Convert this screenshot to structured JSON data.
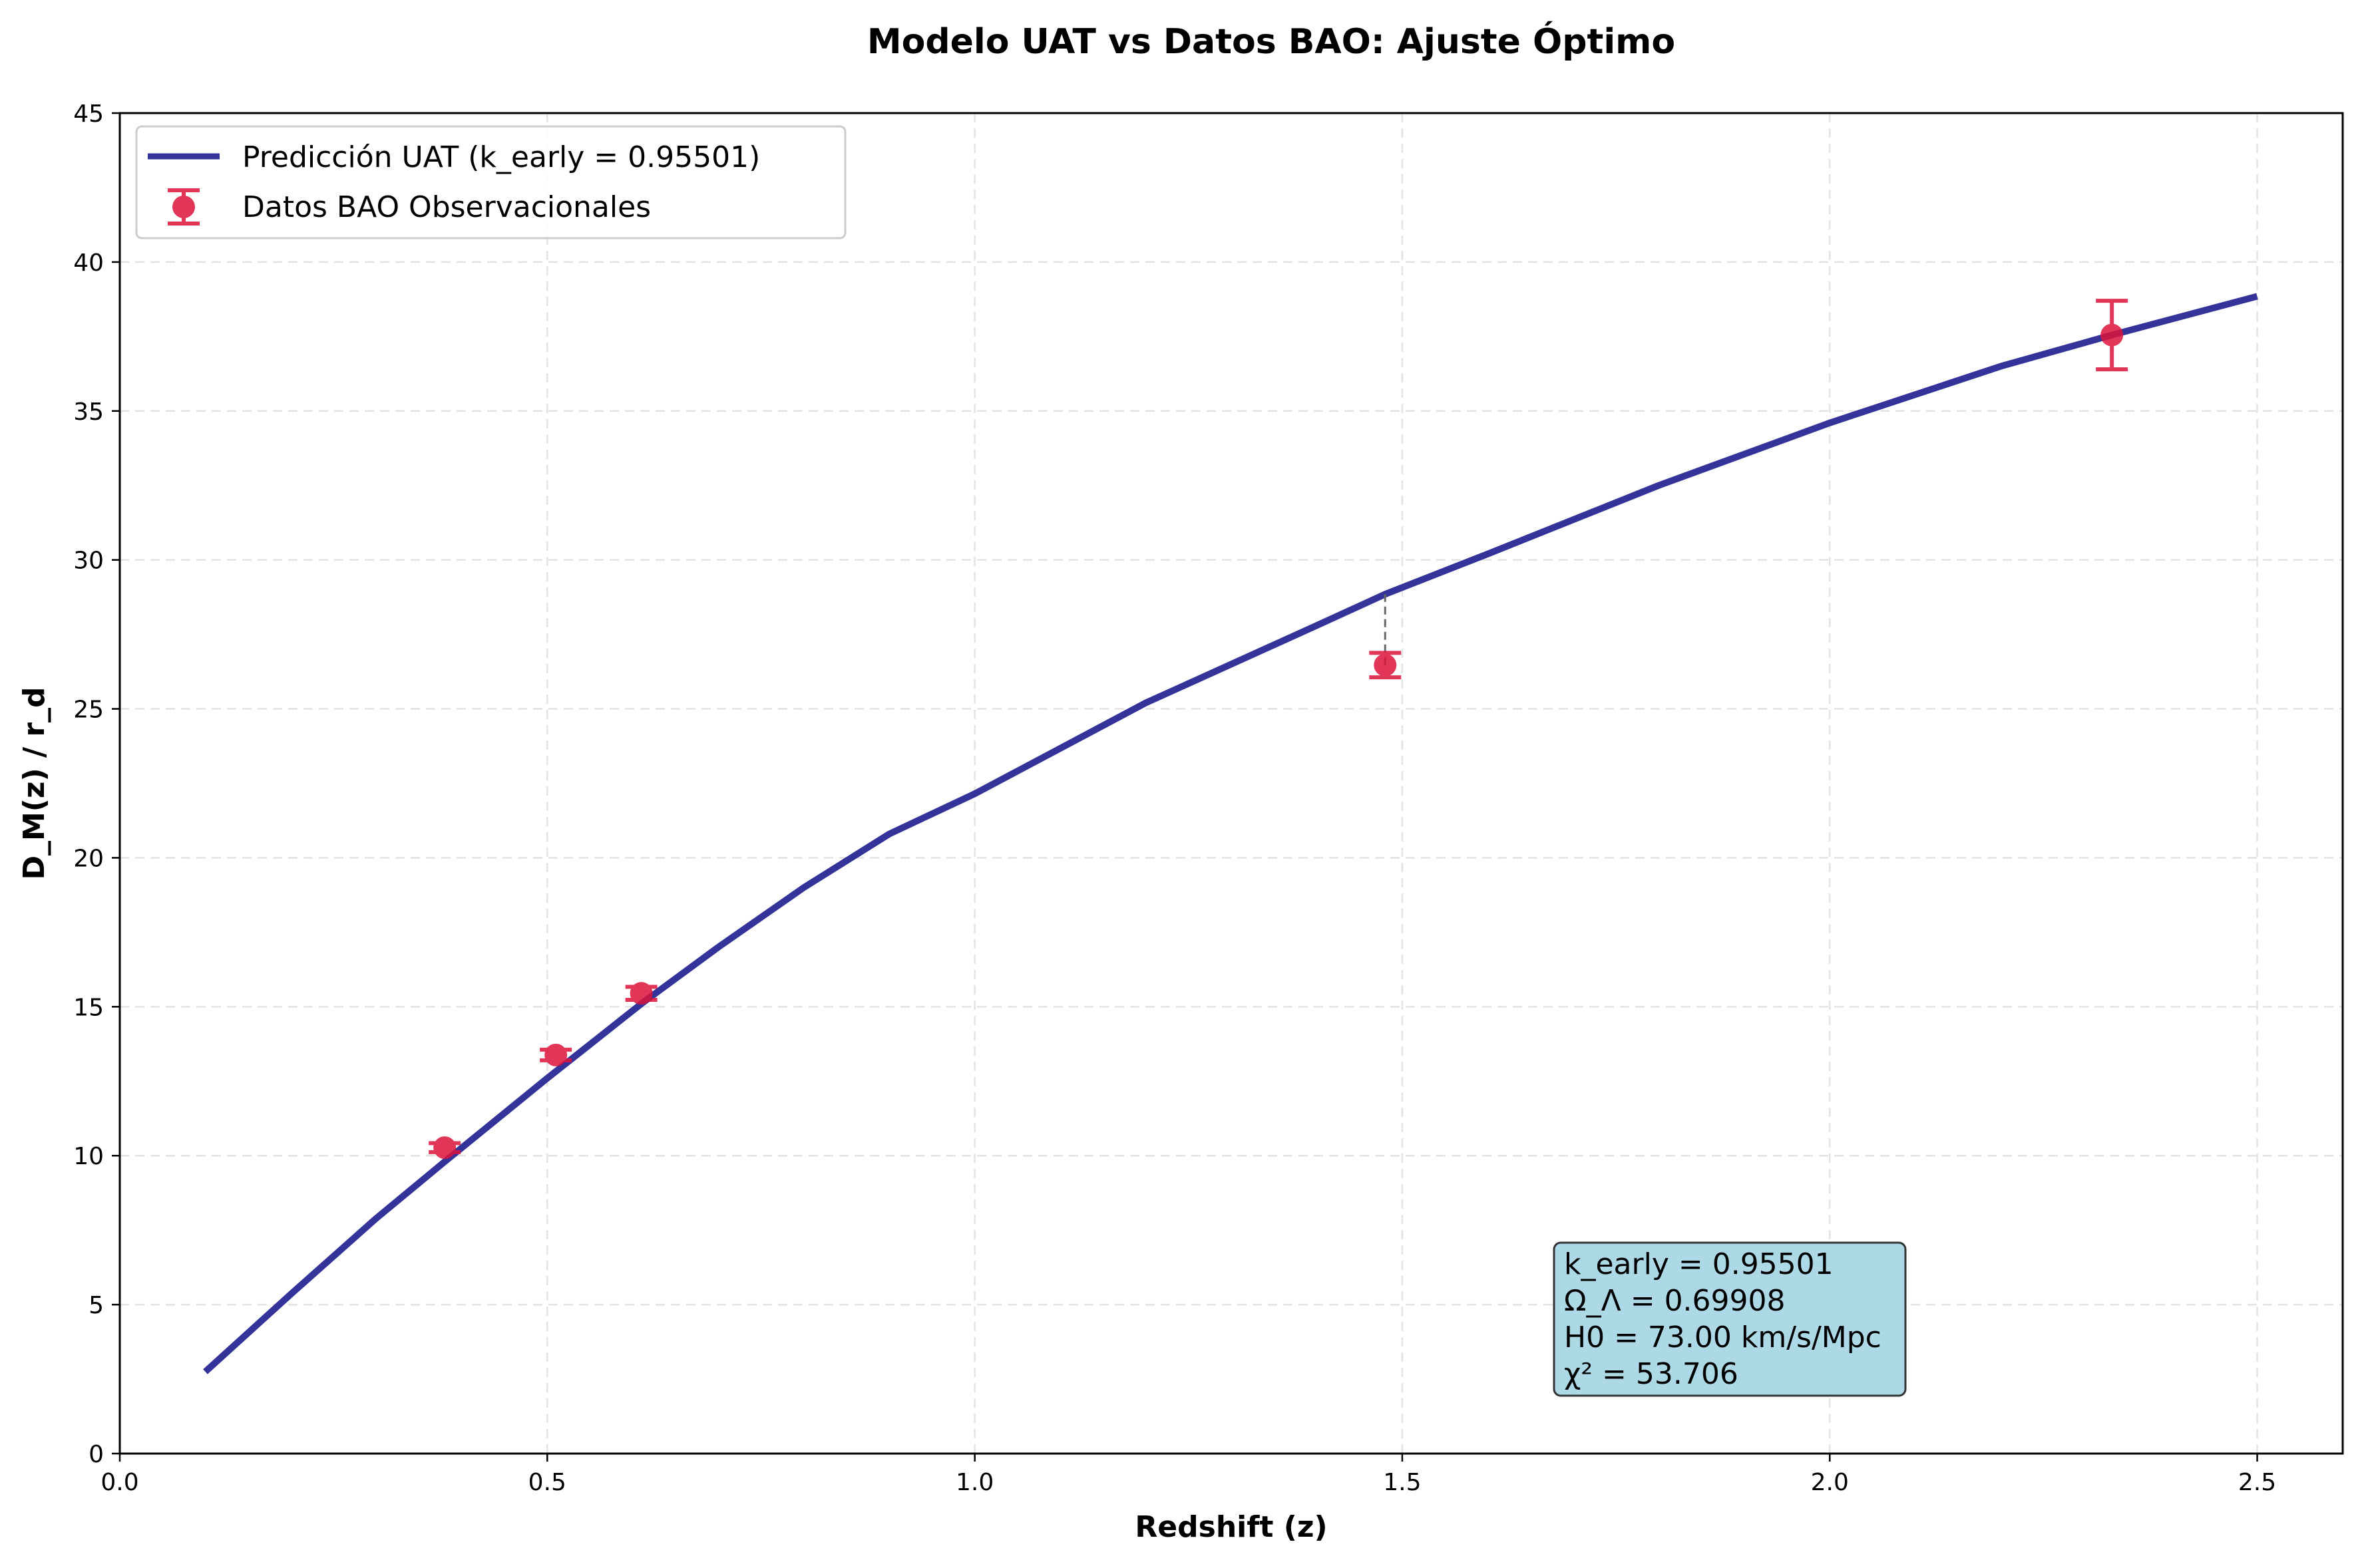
{
  "chart_data": {
    "type": "scatter",
    "title": "Modelo UAT vs Datos BAO: Ajuste Óptimo",
    "xlabel": "Redshift (z)",
    "ylabel": "D_M(z) / r_d",
    "xlim": [
      0.0,
      2.6
    ],
    "ylim": [
      0,
      45
    ],
    "xticks": [
      0.0,
      0.5,
      1.0,
      1.5,
      2.0,
      2.5
    ],
    "xtick_labels": [
      "0.0",
      "0.5",
      "1.0",
      "1.5",
      "2.0",
      "2.5"
    ],
    "yticks": [
      0,
      5,
      10,
      15,
      20,
      25,
      30,
      35,
      40,
      45
    ],
    "ytick_labels": [
      "0",
      "5",
      "10",
      "15",
      "20",
      "25",
      "30",
      "35",
      "40",
      "45"
    ],
    "grid": true,
    "legend_position": "upper-left",
    "series": [
      {
        "name": "Predicción UAT (k_early = 0.95501)",
        "kind": "line",
        "color": "#333399",
        "x": [
          0.1,
          0.2,
          0.3,
          0.38,
          0.5,
          0.61,
          0.7,
          0.8,
          0.9,
          1.0,
          1.2,
          1.4,
          1.48,
          1.6,
          1.8,
          2.0,
          2.2,
          2.33,
          2.5
        ],
        "y": [
          2.75,
          5.35,
          7.9,
          9.8,
          12.6,
          15.1,
          17.0,
          19.0,
          20.8,
          22.15,
          25.2,
          27.8,
          28.85,
          30.2,
          32.5,
          34.6,
          36.5,
          37.55,
          38.85
        ]
      },
      {
        "name": "Datos BAO Observacionales",
        "kind": "errorbar",
        "color": "#dc143c",
        "x": [
          0.38,
          0.51,
          0.61,
          1.48,
          2.33
        ],
        "y": [
          10.27,
          13.38,
          15.45,
          26.47,
          37.55
        ],
        "yerr": [
          0.15,
          0.18,
          0.22,
          0.41,
          1.15
        ]
      }
    ],
    "residual_line": {
      "x": 1.48,
      "y_from": 26.47,
      "y_to": 28.85
    },
    "stats_box": {
      "lines": [
        "k_early = 0.95501",
        "Ω_Λ = 0.69908",
        "H0 = 73.00 km/s/Mpc",
        "χ² = 53.706"
      ],
      "background": "#add8e6"
    }
  }
}
